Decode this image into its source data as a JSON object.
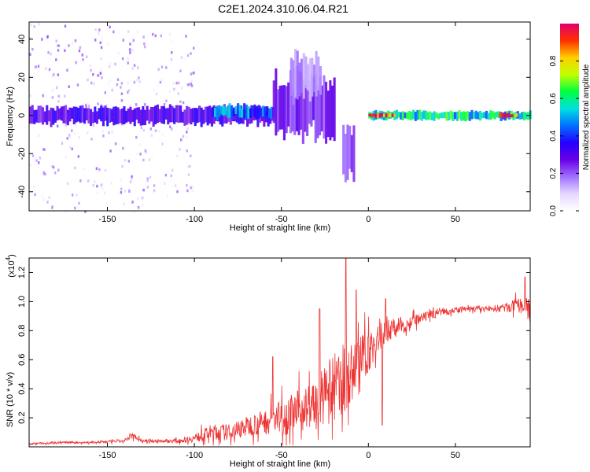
{
  "title": "C2E1.2024.310.06.04.R21",
  "colors": {
    "snr_line": "#ee3333",
    "axes": "#000000",
    "colormap": [
      "#ffffff",
      "#e4d8ff",
      "#a070ff",
      "#6a00e6",
      "#2400ff",
      "#0070ff",
      "#00e0e0",
      "#00ff40",
      "#c0ff00",
      "#ffd000",
      "#ff3000",
      "#e0006a"
    ]
  },
  "chart_data": [
    {
      "type": "heatmap",
      "xlabel": "Height of straight line (km)",
      "ylabel": "Frequency (Hz)",
      "xlim": [
        -195,
        93
      ],
      "ylim": [
        -50,
        49
      ],
      "x_ticks": [
        -150,
        -100,
        -50,
        0,
        50
      ],
      "x_tick_labels": [
        "-150",
        "-100",
        "-50",
        "0",
        "50"
      ],
      "y_ticks": [
        40,
        20,
        0,
        -20,
        -40
      ],
      "y_tick_labels": [
        "40",
        "20",
        "0",
        "-20",
        "-40"
      ],
      "grid": false,
      "description_of_cells": [
        {
          "x_range": [
            -195,
            -130
          ],
          "freq_range": [
            -50,
            49
          ],
          "amplitude": 0.05,
          "note": "sparse scattered speckle"
        },
        {
          "x_range": [
            -130,
            -100
          ],
          "freq_range": [
            -42,
            46
          ],
          "amplitude": 0.03
        },
        {
          "x_range": [
            -195,
            -55
          ],
          "freq_center": 0,
          "freq_halfwidth": 4,
          "amplitude": 0.3
        },
        {
          "x_range": [
            -90,
            -55
          ],
          "freq_center": 2,
          "freq_halfwidth": 3,
          "amplitude": 0.45
        },
        {
          "x_range": [
            -55,
            -20
          ],
          "freq_center": 5,
          "freq_halfwidth": 14,
          "amplitude": 0.25
        },
        {
          "x_range": [
            -45,
            -28
          ],
          "freq_center": 20,
          "freq_halfwidth": 10,
          "amplitude": 0.15
        },
        {
          "x_range": [
            -15,
            -8
          ],
          "freq_center": -20,
          "freq_halfwidth": 12,
          "amplitude": 0.2
        },
        {
          "x_range": [
            0,
            93
          ],
          "freq_center": 0,
          "freq_halfwidth": 2,
          "amplitude": 0.55
        },
        {
          "x_range": [
            0,
            15
          ],
          "freq_center": 0,
          "freq_halfwidth": 1,
          "amplitude": 0.95
        },
        {
          "x_range": [
            75,
            85
          ],
          "freq_center": 0,
          "freq_halfwidth": 1,
          "amplitude": 0.9
        }
      ]
    },
    {
      "type": "colorbar",
      "label": "Normalized spectral amplitude",
      "range": [
        0,
        1
      ],
      "ticks": [
        0.0,
        0.2,
        0.4,
        0.6,
        0.8
      ],
      "tick_labels": [
        "0.0",
        "0.2",
        "0.4",
        "0.6",
        "0.8"
      ]
    },
    {
      "type": "line",
      "xlabel": "Height of straight line (km)",
      "ylabel": "SNR (10 * v/v)",
      "multiplier_label": "(x10",
      "multiplier_exponent": "4",
      "xlim": [
        -195,
        93
      ],
      "ylim": [
        0,
        1.3
      ],
      "x_ticks": [
        -150,
        -100,
        -50,
        0,
        50
      ],
      "x_tick_labels": [
        "-150",
        "-100",
        "-50",
        "0",
        "50"
      ],
      "y_ticks": [
        1.2,
        1.0,
        0.8,
        0.6,
        0.4,
        0.2
      ],
      "y_tick_labels": [
        "1.2",
        "1.0",
        "0.8",
        "0.6",
        "0.4",
        "0.2"
      ],
      "grid": false,
      "series": [
        {
          "x": [
            -195,
            -180,
            -160,
            -140,
            -135,
            -130,
            -110,
            -100,
            -90,
            -80,
            -70,
            -60,
            -50,
            -40,
            -30,
            -20,
            -10,
            -5,
            0,
            10,
            20,
            30,
            40,
            50,
            60,
            70,
            80,
            85,
            93
          ],
          "y_base": [
            0.02,
            0.03,
            0.03,
            0.04,
            0.08,
            0.04,
            0.04,
            0.06,
            0.1,
            0.1,
            0.14,
            0.17,
            0.2,
            0.25,
            0.3,
            0.4,
            0.5,
            0.6,
            0.65,
            0.8,
            0.84,
            0.88,
            0.93,
            0.94,
            0.95,
            0.95,
            0.96,
            0.97,
            0.97
          ],
          "y_spread": [
            0.01,
            0.01,
            0.01,
            0.015,
            0.03,
            0.015,
            0.02,
            0.04,
            0.08,
            0.08,
            0.1,
            0.12,
            0.18,
            0.2,
            0.25,
            0.35,
            0.3,
            0.25,
            0.2,
            0.12,
            0.08,
            0.05,
            0.04,
            0.03,
            0.03,
            0.03,
            0.05,
            0.07,
            0.08
          ],
          "peaks": [
            {
              "x": -137,
              "y": 0.09
            },
            {
              "x": -55,
              "y": 0.62
            },
            {
              "x": -28,
              "y": 0.95
            },
            {
              "x": -13,
              "y": 1.32
            },
            {
              "x": -7,
              "y": 1.08
            },
            {
              "x": 10,
              "y": 1.02
            },
            {
              "x": 90,
              "y": 1.17
            }
          ],
          "dips": [
            {
              "x": 8,
              "y": 0.15
            }
          ]
        }
      ]
    }
  ]
}
